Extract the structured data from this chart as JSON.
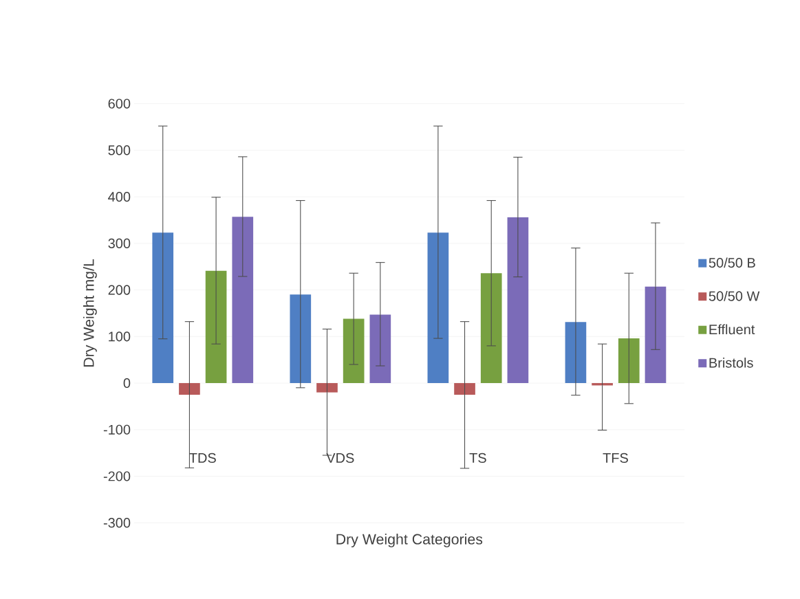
{
  "chart_data": {
    "type": "bar",
    "xlabel": "Dry Weight Categories",
    "ylabel": "Dry Weight mg/L",
    "categories": [
      "TDS",
      "VDS",
      "TS",
      "TFS"
    ],
    "ylim": [
      -300,
      600
    ],
    "yticks": [
      -300,
      -200,
      -100,
      0,
      100,
      200,
      300,
      400,
      500,
      600
    ],
    "grid": "y",
    "legend": "right",
    "series": [
      {
        "name": "50/50 B",
        "color": "#4f7fc4",
        "values": [
          323,
          190,
          323,
          131
        ],
        "errors": [
          [
            95,
            552
          ],
          [
            -10,
            392
          ],
          [
            96,
            552
          ],
          [
            -26,
            290
          ]
        ]
      },
      {
        "name": "50/50 W",
        "color": "#b85a5a",
        "values": [
          -25,
          -20,
          -25,
          -5
        ],
        "errors": [
          [
            -182,
            132
          ],
          [
            -155,
            116
          ],
          [
            -183,
            132
          ],
          [
            -101,
            84
          ]
        ]
      },
      {
        "name": "Effluent",
        "color": "#77a040",
        "values": [
          241,
          138,
          236,
          96
        ],
        "errors": [
          [
            84,
            399
          ],
          [
            40,
            236
          ],
          [
            80,
            392
          ],
          [
            -44,
            236
          ]
        ]
      },
      {
        "name": "Bristols",
        "color": "#7b6bb8",
        "values": [
          357,
          147,
          356,
          207
        ],
        "errors": [
          [
            229,
            486
          ],
          [
            37,
            259
          ],
          [
            228,
            485
          ],
          [
            72,
            344
          ]
        ]
      }
    ]
  }
}
